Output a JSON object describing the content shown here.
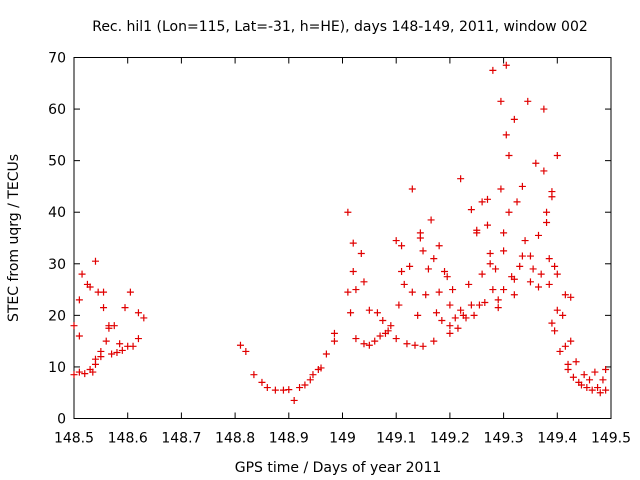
{
  "chart_data": {
    "type": "scatter",
    "title": "Rec. hil1 (Lon=115, Lat=-31, h=HE), days 148-149, 2011, window 002",
    "xlabel": "GPS time / Days of year 2011",
    "ylabel": "STEC from uqrg / TECUs",
    "xlim": [
      148.5,
      149.5
    ],
    "ylim": [
      0,
      70
    ],
    "x_ticks": [
      "148.5",
      "148.6",
      "148.7",
      "148.8",
      "148.9",
      "149",
      "149.1",
      "149.2",
      "149.3",
      "149.4",
      "149.5"
    ],
    "y_ticks": [
      "0",
      "10",
      "20",
      "30",
      "40",
      "50",
      "60",
      "70"
    ],
    "marker": "plus",
    "color": "#e00000",
    "grid": false,
    "legend": "none",
    "points": [
      [
        148.5,
        18
      ],
      [
        148.5,
        8.5
      ],
      [
        148.51,
        9
      ],
      [
        148.51,
        16
      ],
      [
        148.51,
        23
      ],
      [
        148.515,
        28
      ],
      [
        148.52,
        8.7
      ],
      [
        148.525,
        26
      ],
      [
        148.53,
        9.5
      ],
      [
        148.53,
        25.5
      ],
      [
        148.535,
        9
      ],
      [
        148.54,
        30.5
      ],
      [
        148.54,
        10.5
      ],
      [
        148.54,
        11.5
      ],
      [
        148.545,
        24.5
      ],
      [
        148.55,
        13
      ],
      [
        148.55,
        12
      ],
      [
        148.555,
        24.5
      ],
      [
        148.555,
        21.5
      ],
      [
        148.56,
        15
      ],
      [
        148.565,
        17.5
      ],
      [
        148.565,
        18
      ],
      [
        148.57,
        12.5
      ],
      [
        148.575,
        18
      ],
      [
        148.58,
        12.8
      ],
      [
        148.585,
        14.5
      ],
      [
        148.59,
        13.2
      ],
      [
        148.595,
        21.5
      ],
      [
        148.6,
        14
      ],
      [
        148.605,
        24.5
      ],
      [
        148.61,
        14
      ],
      [
        148.62,
        15.5
      ],
      [
        148.62,
        20.5
      ],
      [
        148.63,
        19.5
      ],
      [
        148.81,
        14.2
      ],
      [
        148.82,
        13
      ],
      [
        148.835,
        8.5
      ],
      [
        148.85,
        7
      ],
      [
        148.86,
        6
      ],
      [
        148.875,
        5.5
      ],
      [
        148.89,
        5.5
      ],
      [
        148.9,
        5.6
      ],
      [
        148.91,
        3.5
      ],
      [
        148.92,
        6
      ],
      [
        148.93,
        6.5
      ],
      [
        148.94,
        7.5
      ],
      [
        148.945,
        8.5
      ],
      [
        148.955,
        9.5
      ],
      [
        148.96,
        9.8
      ],
      [
        148.97,
        12.5
      ],
      [
        148.985,
        15
      ],
      [
        148.985,
        16.5
      ],
      [
        149.01,
        40
      ],
      [
        149.01,
        24.5
      ],
      [
        149.015,
        20.5
      ],
      [
        149.02,
        34
      ],
      [
        149.02,
        28.5
      ],
      [
        149.025,
        25
      ],
      [
        149.025,
        15.5
      ],
      [
        149.035,
        32
      ],
      [
        149.04,
        14.5
      ],
      [
        149.04,
        26.5
      ],
      [
        149.05,
        21
      ],
      [
        149.05,
        14.2
      ],
      [
        149.06,
        15
      ],
      [
        149.065,
        20.5
      ],
      [
        149.07,
        16
      ],
      [
        149.075,
        19
      ],
      [
        149.08,
        16.5
      ],
      [
        149.085,
        17
      ],
      [
        149.09,
        18
      ],
      [
        149.1,
        34.5
      ],
      [
        149.1,
        15.5
      ],
      [
        149.105,
        22
      ],
      [
        149.11,
        33.5
      ],
      [
        149.11,
        28.5
      ],
      [
        149.115,
        26
      ],
      [
        149.12,
        14.5
      ],
      [
        149.125,
        29.5
      ],
      [
        149.13,
        44.5
      ],
      [
        149.13,
        24.5
      ],
      [
        149.135,
        14.2
      ],
      [
        149.14,
        20
      ],
      [
        149.145,
        35
      ],
      [
        149.145,
        36
      ],
      [
        149.15,
        32.5
      ],
      [
        149.15,
        14
      ],
      [
        149.155,
        24
      ],
      [
        149.16,
        29
      ],
      [
        149.165,
        38.5
      ],
      [
        149.17,
        31
      ],
      [
        149.17,
        15
      ],
      [
        149.175,
        20.5
      ],
      [
        149.18,
        33.5
      ],
      [
        149.18,
        24.5
      ],
      [
        149.185,
        19
      ],
      [
        149.19,
        28.5
      ],
      [
        149.195,
        27.5
      ],
      [
        149.2,
        22
      ],
      [
        149.2,
        18
      ],
      [
        149.2,
        16.5
      ],
      [
        149.205,
        25
      ],
      [
        149.21,
        19.5
      ],
      [
        149.215,
        17.5
      ],
      [
        149.22,
        46.5
      ],
      [
        149.22,
        21
      ],
      [
        149.225,
        20
      ],
      [
        149.23,
        19.5
      ],
      [
        149.235,
        26
      ],
      [
        149.24,
        40.5
      ],
      [
        149.24,
        22
      ],
      [
        149.245,
        20
      ],
      [
        149.25,
        36
      ],
      [
        149.25,
        36.5
      ],
      [
        149.255,
        22
      ],
      [
        149.26,
        42
      ],
      [
        149.26,
        28
      ],
      [
        149.265,
        22.5
      ],
      [
        149.27,
        42.5
      ],
      [
        149.27,
        37.5
      ],
      [
        149.275,
        30
      ],
      [
        149.275,
        32
      ],
      [
        149.28,
        67.5
      ],
      [
        149.28,
        25
      ],
      [
        149.285,
        29
      ],
      [
        149.29,
        21.5
      ],
      [
        149.29,
        23
      ],
      [
        149.295,
        61.5
      ],
      [
        149.295,
        44.5
      ],
      [
        149.3,
        36
      ],
      [
        149.3,
        32.5
      ],
      [
        149.3,
        25
      ],
      [
        149.305,
        68.5
      ],
      [
        149.305,
        55
      ],
      [
        149.31,
        51
      ],
      [
        149.31,
        40
      ],
      [
        149.315,
        27.5
      ],
      [
        149.32,
        27
      ],
      [
        149.32,
        58
      ],
      [
        149.32,
        24
      ],
      [
        149.325,
        42
      ],
      [
        149.33,
        29.5
      ],
      [
        149.335,
        45
      ],
      [
        149.335,
        31.5
      ],
      [
        149.34,
        34.5
      ],
      [
        149.345,
        61.5
      ],
      [
        149.35,
        31.5
      ],
      [
        149.35,
        26.5
      ],
      [
        149.355,
        29
      ],
      [
        149.36,
        49.5
      ],
      [
        149.365,
        35.5
      ],
      [
        149.365,
        25.5
      ],
      [
        149.37,
        28
      ],
      [
        149.375,
        60
      ],
      [
        149.375,
        48
      ],
      [
        149.38,
        40
      ],
      [
        149.38,
        38
      ],
      [
        149.385,
        31
      ],
      [
        149.385,
        26
      ],
      [
        149.39,
        44
      ],
      [
        149.39,
        43
      ],
      [
        149.39,
        18.5
      ],
      [
        149.395,
        29.5
      ],
      [
        149.395,
        17
      ],
      [
        149.4,
        51
      ],
      [
        149.4,
        28
      ],
      [
        149.4,
        21
      ],
      [
        149.405,
        13
      ],
      [
        149.41,
        20
      ],
      [
        149.415,
        24
      ],
      [
        149.415,
        14
      ],
      [
        149.42,
        10.5
      ],
      [
        149.42,
        9.5
      ],
      [
        149.425,
        23.5
      ],
      [
        149.425,
        15
      ],
      [
        149.43,
        8
      ],
      [
        149.435,
        11
      ],
      [
        149.44,
        7
      ],
      [
        149.445,
        6.5
      ],
      [
        149.45,
        8.5
      ],
      [
        149.455,
        6
      ],
      [
        149.46,
        7.5
      ],
      [
        149.465,
        5.5
      ],
      [
        149.47,
        9
      ],
      [
        149.475,
        6
      ],
      [
        149.48,
        5
      ],
      [
        149.485,
        7.5
      ],
      [
        149.49,
        9.5
      ],
      [
        149.49,
        5.5
      ]
    ]
  }
}
